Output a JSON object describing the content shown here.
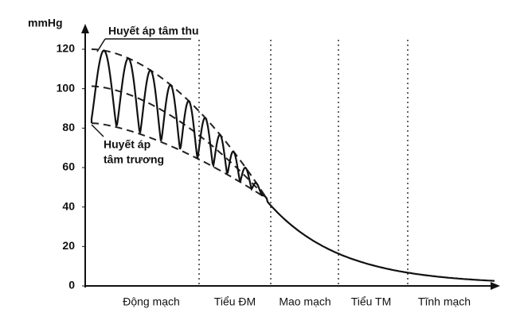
{
  "axis": {
    "unit": "mmHg",
    "yticks": [
      0,
      20,
      40,
      60,
      80,
      100,
      120
    ]
  },
  "regions": [
    "Động mạch",
    "Tiểu ĐM",
    "Mao mạch",
    "Tiểu TM",
    "Tĩnh mạch"
  ],
  "annotations": {
    "systolic": "Huyết áp tâm thu",
    "diastolic_line1": "Huyết áp",
    "diastolic_line2": "tâm trương"
  }
}
